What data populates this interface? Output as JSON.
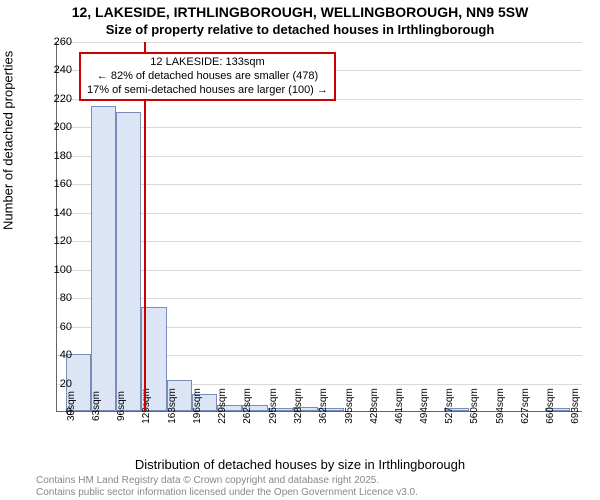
{
  "title_main": "12, LAKESIDE, IRTHLINGBOROUGH, WELLINGBOROUGH, NN9 5SW",
  "title_sub": "Size of property relative to detached houses in Irthlingborough",
  "ylabel": "Number of detached properties",
  "xlabel": "Distribution of detached houses by size in Irthlingborough",
  "attribution_line1": "Contains HM Land Registry data © Crown copyright and database right 2025.",
  "attribution_line2": "Contains public sector information licensed under the Open Government Licence v3.0.",
  "chart": {
    "type": "histogram",
    "ylim": [
      0,
      260
    ],
    "ytick_step": 20,
    "bar_fill": "#dbe5f6",
    "bar_stroke": "#7a8db8",
    "grid_color": "#d9d9d9",
    "background_color": "#ffffff",
    "marker_color": "#cc0000",
    "marker_value_x": 133,
    "x_tick_labels": [
      "30sqm",
      "63sqm",
      "96sqm",
      "129sqm",
      "163sqm",
      "196sqm",
      "229sqm",
      "262sqm",
      "295sqm",
      "328sqm",
      "362sqm",
      "395sqm",
      "428sqm",
      "461sqm",
      "494sqm",
      "527sqm",
      "560sqm",
      "594sqm",
      "627sqm",
      "660sqm",
      "693sqm"
    ],
    "x_tick_values": [
      30,
      63,
      96,
      129,
      163,
      196,
      229,
      262,
      295,
      328,
      362,
      395,
      428,
      461,
      494,
      527,
      560,
      594,
      627,
      660,
      693
    ],
    "x_min": 18,
    "x_max": 710,
    "bars": [
      {
        "x0": 30,
        "x1": 63,
        "y": 40
      },
      {
        "x0": 63,
        "x1": 96,
        "y": 214
      },
      {
        "x0": 96,
        "x1": 129,
        "y": 210
      },
      {
        "x0": 129,
        "x1": 163,
        "y": 73
      },
      {
        "x0": 163,
        "x1": 196,
        "y": 22
      },
      {
        "x0": 196,
        "x1": 229,
        "y": 12
      },
      {
        "x0": 229,
        "x1": 262,
        "y": 4
      },
      {
        "x0": 262,
        "x1": 295,
        "y": 4
      },
      {
        "x0": 295,
        "x1": 328,
        "y": 2
      },
      {
        "x0": 328,
        "x1": 362,
        "y": 3
      },
      {
        "x0": 362,
        "x1": 395,
        "y": 2
      },
      {
        "x0": 395,
        "x1": 428,
        "y": 0
      },
      {
        "x0": 428,
        "x1": 461,
        "y": 0
      },
      {
        "x0": 461,
        "x1": 494,
        "y": 0
      },
      {
        "x0": 494,
        "x1": 527,
        "y": 0
      },
      {
        "x0": 527,
        "x1": 560,
        "y": 2
      },
      {
        "x0": 560,
        "x1": 594,
        "y": 0
      },
      {
        "x0": 594,
        "x1": 627,
        "y": 0
      },
      {
        "x0": 627,
        "x1": 660,
        "y": 0
      },
      {
        "x0": 660,
        "x1": 693,
        "y": 2
      }
    ],
    "annotation": {
      "line1": "12 LAKESIDE: 133sqm",
      "line2": "← 82% of detached houses are smaller (478)",
      "line3": "17% of semi-detached houses are larger (100) →"
    }
  }
}
